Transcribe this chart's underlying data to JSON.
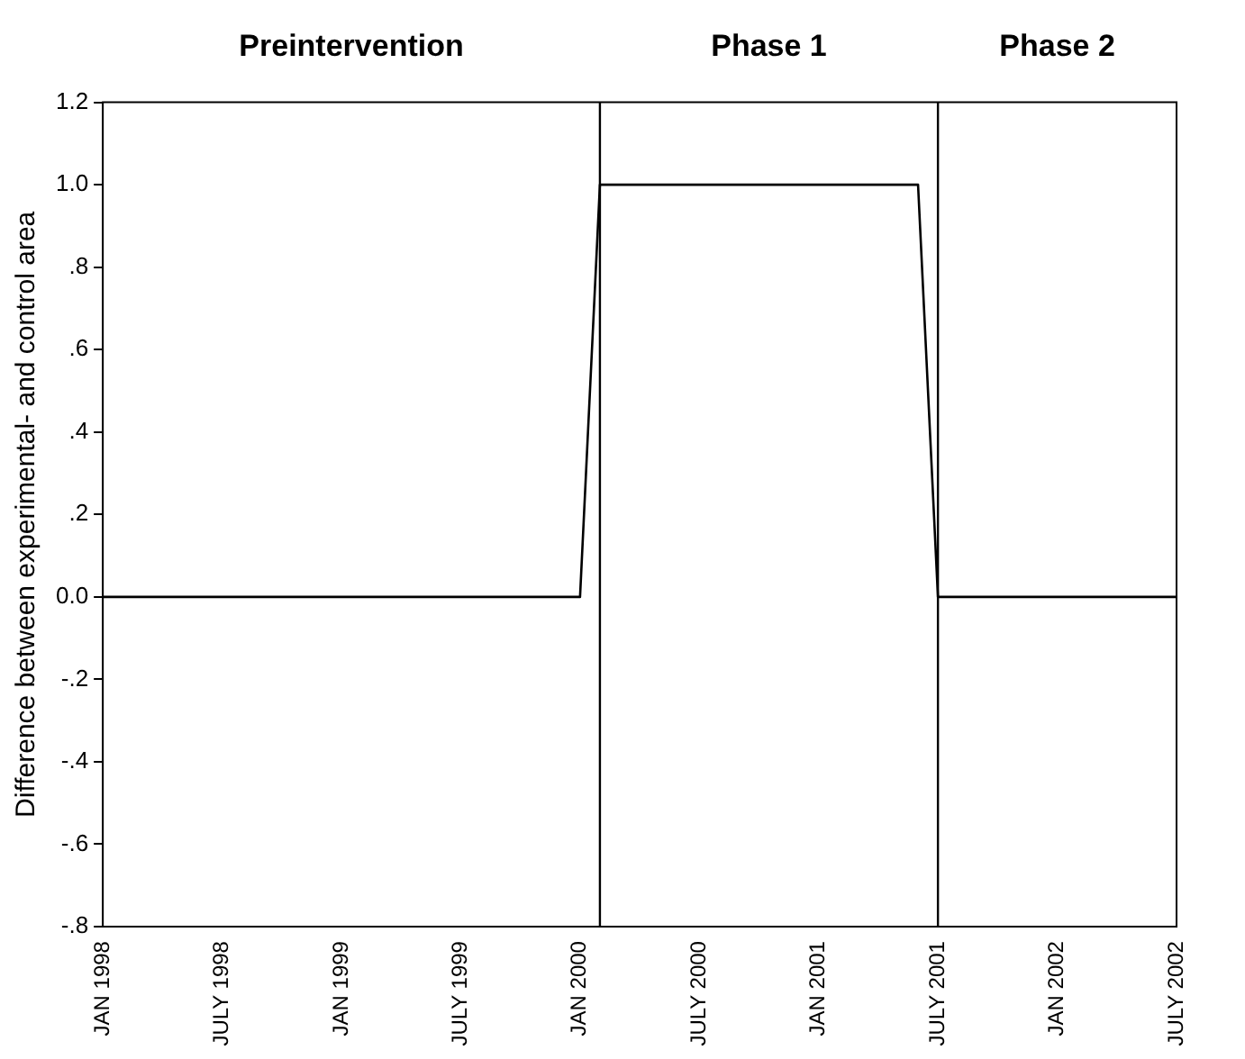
{
  "chart_data": {
    "type": "line",
    "ylabel": "Difference between experimental- and control area",
    "annotations": [
      "Preintervention",
      "Phase 1",
      "Phase 2"
    ],
    "x": [
      "1998-01",
      "2000-01",
      "2000-02",
      "2001-06",
      "2001-07",
      "2002-07"
    ],
    "series": [
      {
        "color": "#000000",
        "values": [
          0,
          0,
          1,
          1,
          0,
          0
        ]
      }
    ],
    "xlim": [
      "1998-01",
      "2002-07"
    ],
    "xticks": [
      {
        "value": "1998-01",
        "label": "JAN 1998"
      },
      {
        "value": "1998-07",
        "label": "JULY 1998"
      },
      {
        "value": "1999-01",
        "label": "JAN 1999"
      },
      {
        "value": "1999-07",
        "label": "JULY 1999"
      },
      {
        "value": "2000-01",
        "label": "JAN 2000"
      },
      {
        "value": "2000-07",
        "label": "JULY 2000"
      },
      {
        "value": "2001-01",
        "label": "JAN 2001"
      },
      {
        "value": "2001-07",
        "label": "JULY 2001"
      },
      {
        "value": "2002-01",
        "label": "JAN 2002"
      },
      {
        "value": "2002-07",
        "label": "JULY 2002"
      }
    ],
    "ylim": [
      -0.8,
      1.2
    ],
    "yticks": [
      {
        "value": -0.8,
        "label": "-.8"
      },
      {
        "value": -0.6,
        "label": "-.6"
      },
      {
        "value": -0.4,
        "label": "-.4"
      },
      {
        "value": -0.2,
        "label": "-.2"
      },
      {
        "value": 0,
        "label": "0.0"
      },
      {
        "value": 0.2,
        "label": ".2"
      },
      {
        "value": 0.4,
        "label": ".4"
      },
      {
        "value": 0.6,
        "label": ".6"
      },
      {
        "value": 0.8,
        "label": ".8"
      },
      {
        "value": 1,
        "label": "1.0"
      },
      {
        "value": 1.2,
        "label": "1.2"
      }
    ],
    "ref_lines": [
      {
        "axis": "x",
        "value": "2000-02",
        "color": "#000000"
      },
      {
        "axis": "x",
        "value": "2001-07",
        "color": "#000000"
      }
    ],
    "grid": false,
    "legend": false,
    "marker": "none",
    "line_style": "solid"
  }
}
